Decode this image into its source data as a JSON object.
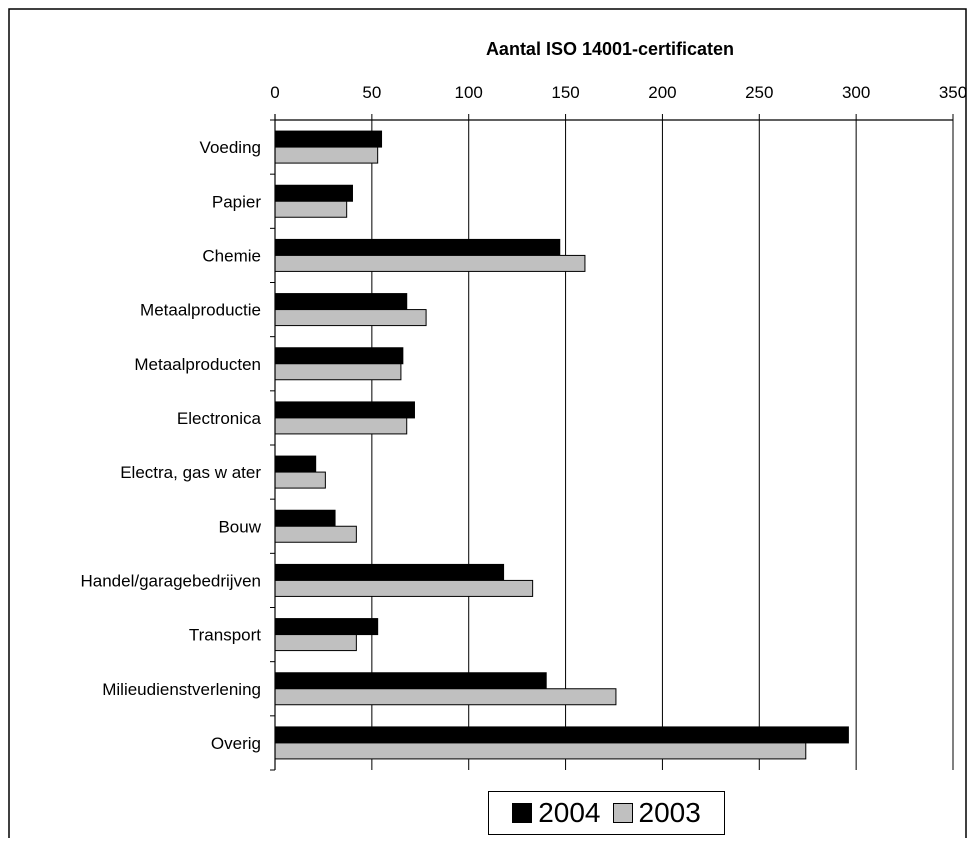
{
  "chart_data": {
    "type": "bar",
    "orientation": "horizontal",
    "title": "Aantal ISO 14001-certificaten",
    "categories": [
      "Voeding",
      "Papier",
      "Chemie",
      "Metaalproductie",
      "Metaalproducten",
      "Electronica",
      "Electra, gas w ater",
      "Bouw",
      "Handel/garagebedrijven",
      "Transport",
      "Milieudienstverlening",
      "Overig"
    ],
    "series": [
      {
        "name": "2004",
        "color": "#000000",
        "values": [
          55,
          40,
          147,
          68,
          66,
          72,
          21,
          31,
          118,
          53,
          140,
          296
        ]
      },
      {
        "name": "2003",
        "color": "#c0c0c0",
        "values": [
          53,
          37,
          160,
          78,
          65,
          68,
          26,
          42,
          133,
          42,
          176,
          274
        ]
      }
    ],
    "xlim": [
      0,
      350
    ],
    "xticks": [
      "0",
      "50",
      "100",
      "150",
      "200",
      "250",
      "300",
      "350"
    ],
    "axis_position": "top",
    "grid": "vertical",
    "legend_position": "bottom-center"
  }
}
